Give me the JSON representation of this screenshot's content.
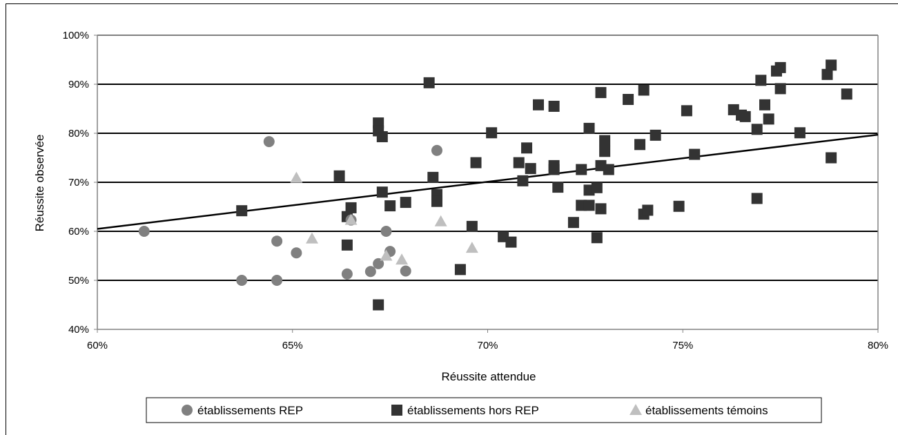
{
  "chart_data": {
    "type": "scatter",
    "title": "",
    "xlabel": "Réussite attendue",
    "ylabel": "Réussite observée",
    "xlim": [
      60,
      80
    ],
    "ylim": [
      40,
      100
    ],
    "x_ticks": [
      60,
      65,
      70,
      75,
      80
    ],
    "x_tick_labels": [
      "60%",
      "65%",
      "70%",
      "75%",
      "80%"
    ],
    "y_ticks": [
      40,
      50,
      60,
      70,
      80,
      90,
      100
    ],
    "y_tick_labels": [
      "40%",
      "50%",
      "60%",
      "70%",
      "80%",
      "90%",
      "100%"
    ],
    "gridlines": "horizontal",
    "legend_position": "bottom",
    "trendline": {
      "x": [
        60,
        80
      ],
      "y": [
        60.5,
        79.7
      ]
    },
    "series": [
      {
        "name": "établissements REP",
        "marker": "circle",
        "color": "#808080",
        "points": [
          [
            61.2,
            60.0
          ],
          [
            63.7,
            50.0
          ],
          [
            64.4,
            78.3
          ],
          [
            64.6,
            58.0
          ],
          [
            64.6,
            50.0
          ],
          [
            65.1,
            55.6
          ],
          [
            66.4,
            51.3
          ],
          [
            66.5,
            62.3
          ],
          [
            67.0,
            51.8
          ],
          [
            67.2,
            53.4
          ],
          [
            67.4,
            60.0
          ],
          [
            67.5,
            55.9
          ],
          [
            67.9,
            51.9
          ],
          [
            68.7,
            76.5
          ]
        ]
      },
      {
        "name": "établissements hors REP",
        "marker": "square",
        "color": "#333333",
        "points": [
          [
            63.7,
            64.2
          ],
          [
            66.2,
            71.3
          ],
          [
            66.4,
            63.0
          ],
          [
            66.4,
            57.2
          ],
          [
            66.5,
            64.8
          ],
          [
            67.2,
            82.1
          ],
          [
            67.2,
            80.5
          ],
          [
            67.3,
            79.3
          ],
          [
            67.3,
            68.0
          ],
          [
            67.2,
            45.0
          ],
          [
            67.5,
            65.2
          ],
          [
            67.9,
            65.9
          ],
          [
            68.5,
            90.3
          ],
          [
            68.6,
            71.0
          ],
          [
            68.7,
            67.5
          ],
          [
            68.7,
            66.1
          ],
          [
            69.3,
            52.2
          ],
          [
            69.6,
            61.0
          ],
          [
            69.7,
            74.0
          ],
          [
            70.1,
            80.1
          ],
          [
            70.4,
            58.9
          ],
          [
            70.6,
            57.8
          ],
          [
            70.8,
            74.0
          ],
          [
            70.9,
            70.3
          ],
          [
            71.0,
            77.0
          ],
          [
            71.1,
            72.8
          ],
          [
            71.3,
            85.8
          ],
          [
            71.7,
            85.5
          ],
          [
            71.7,
            72.6
          ],
          [
            71.7,
            73.4
          ],
          [
            71.8,
            69.0
          ],
          [
            72.2,
            61.8
          ],
          [
            72.4,
            72.6
          ],
          [
            72.4,
            65.3
          ],
          [
            72.6,
            81.0
          ],
          [
            72.6,
            68.4
          ],
          [
            72.6,
            65.3
          ],
          [
            72.8,
            68.9
          ],
          [
            72.8,
            58.7
          ],
          [
            72.9,
            88.3
          ],
          [
            72.9,
            73.4
          ],
          [
            72.9,
            64.6
          ],
          [
            73.0,
            78.5
          ],
          [
            73.0,
            76.3
          ],
          [
            73.1,
            72.6
          ],
          [
            73.6,
            86.9
          ],
          [
            73.9,
            77.7
          ],
          [
            74.0,
            63.5
          ],
          [
            74.0,
            88.8
          ],
          [
            74.1,
            64.3
          ],
          [
            74.3,
            79.6
          ],
          [
            74.9,
            65.1
          ],
          [
            75.1,
            84.6
          ],
          [
            75.3,
            75.7
          ],
          [
            76.3,
            84.8
          ],
          [
            76.5,
            83.7
          ],
          [
            76.6,
            83.4
          ],
          [
            76.9,
            80.8
          ],
          [
            76.9,
            66.7
          ],
          [
            77.0,
            90.8
          ],
          [
            77.1,
            85.8
          ],
          [
            77.2,
            82.9
          ],
          [
            77.4,
            92.7
          ],
          [
            77.5,
            93.4
          ],
          [
            77.5,
            89.1
          ],
          [
            78.0,
            80.1
          ],
          [
            78.7,
            92.0
          ],
          [
            78.8,
            75.0
          ],
          [
            78.8,
            93.9
          ],
          [
            79.2,
            88.0
          ]
        ]
      },
      {
        "name": "établissements témoins",
        "marker": "triangle",
        "color": "#bfbfbf",
        "points": [
          [
            65.1,
            70.9
          ],
          [
            65.5,
            58.5
          ],
          [
            66.5,
            62.3
          ],
          [
            67.4,
            55.0
          ],
          [
            67.8,
            54.2
          ],
          [
            68.8,
            62.0
          ],
          [
            69.6,
            56.6
          ]
        ]
      }
    ]
  }
}
